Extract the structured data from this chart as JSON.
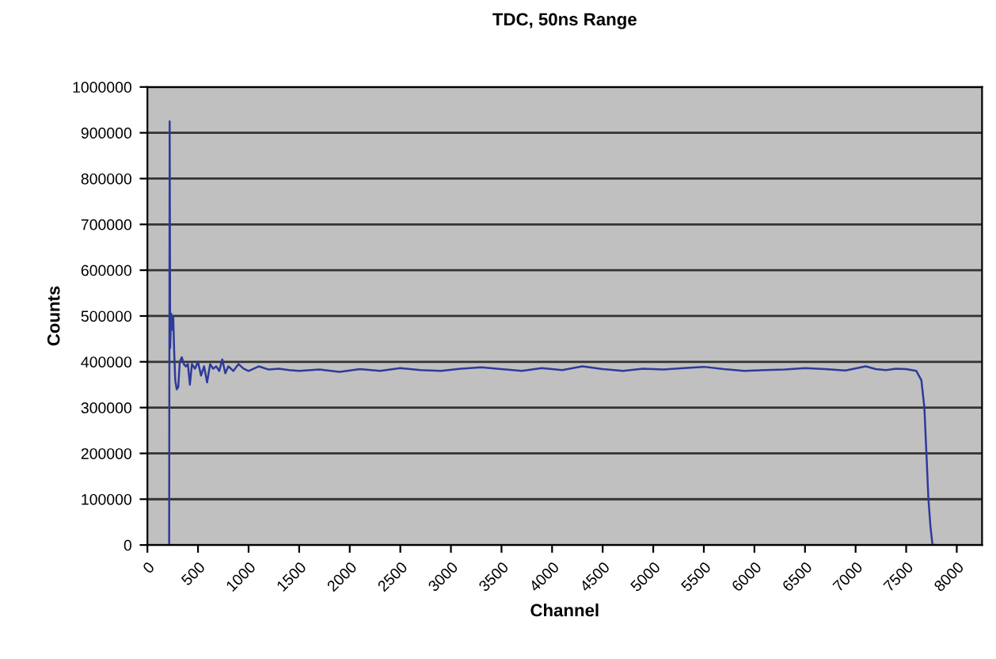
{
  "chart_data": {
    "type": "line",
    "title": "TDC, 50ns Range",
    "xlabel": "Channel",
    "ylabel": "Counts",
    "x": [
      215,
      220,
      225,
      235,
      245,
      255,
      265,
      275,
      290,
      305,
      320,
      340,
      360,
      380,
      400,
      420,
      440,
      470,
      500,
      530,
      560,
      590,
      620,
      650,
      680,
      710,
      740,
      770,
      800,
      850,
      900,
      950,
      1000,
      1100,
      1200,
      1300,
      1400,
      1500,
      1700,
      1900,
      2100,
      2300,
      2500,
      2700,
      2900,
      3100,
      3300,
      3500,
      3700,
      3900,
      4100,
      4300,
      4500,
      4700,
      4900,
      5100,
      5300,
      5500,
      5700,
      5900,
      6100,
      6300,
      6500,
      6700,
      6900,
      7100,
      7200,
      7300,
      7400,
      7500,
      7600,
      7650,
      7680,
      7700,
      7720,
      7740,
      7760,
      7780
    ],
    "series": [
      {
        "color": "#2e3a9a",
        "values": [
          0,
          925000,
          430000,
          505000,
          470000,
          500000,
          420000,
          360000,
          340000,
          345000,
          400000,
          410000,
          395000,
          390000,
          395000,
          350000,
          395000,
          385000,
          400000,
          370000,
          390000,
          355000,
          395000,
          385000,
          390000,
          380000,
          405000,
          375000,
          390000,
          380000,
          395000,
          385000,
          380000,
          390000,
          383000,
          385000,
          382000,
          380000,
          383000,
          378000,
          384000,
          380000,
          386000,
          382000,
          380000,
          385000,
          388000,
          384000,
          380000,
          386000,
          382000,
          390000,
          384000,
          380000,
          385000,
          383000,
          386000,
          389000,
          384000,
          380000,
          382000,
          383000,
          386000,
          384000,
          381000,
          390000,
          384000,
          382000,
          385000,
          384000,
          380000,
          360000,
          300000,
          200000,
          100000,
          40000,
          0,
          0
        ]
      }
    ],
    "xlim": [
      0,
      8250
    ],
    "ylim": [
      0,
      1000000
    ],
    "xticks": [
      0,
      500,
      1000,
      1500,
      2000,
      2500,
      3000,
      3500,
      4000,
      4500,
      5000,
      5500,
      6000,
      6500,
      7000,
      7500,
      8000
    ],
    "yticks": [
      0,
      100000,
      200000,
      300000,
      400000,
      500000,
      600000,
      700000,
      800000,
      900000,
      1000000
    ],
    "grid": "y",
    "legend": false
  }
}
